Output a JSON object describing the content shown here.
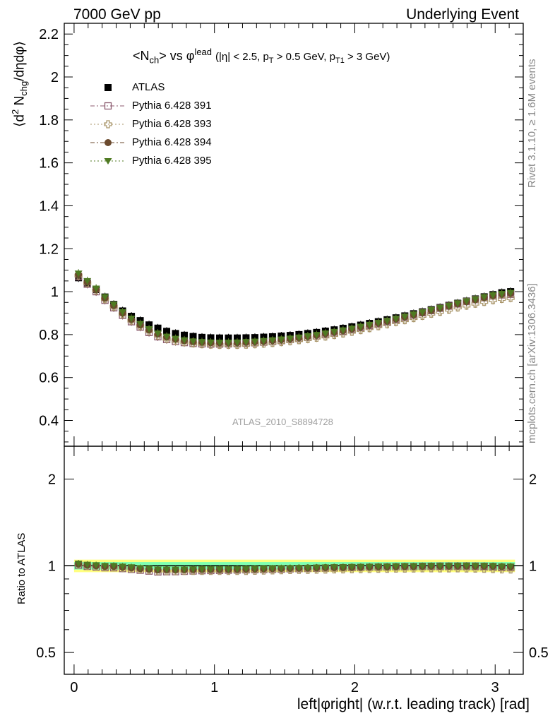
{
  "header": {
    "left": "7000 GeV pp",
    "right": "Underlying Event"
  },
  "side_labels": {
    "rivet": "Rivet 3.1.10, ≥ 1.6M events",
    "mcplots": "mcplots.cern.ch [arXiv:1306.3436]"
  },
  "watermark": "ATLAS_2010_S8894728",
  "plot_title": {
    "main": "<N",
    "main_sub": "ch",
    "main_rest": "> vs φ",
    "main_sup": "lead",
    "cuts": "(|η| < 2.5, p",
    "cuts_sub1": "T",
    "cuts_mid": " > 0.5 GeV, p",
    "cuts_sub2": "T1",
    "cuts_end": " > 3 GeV)"
  },
  "y_axis_label": {
    "pre": "⟨d",
    "sup": "2",
    "mid": " N",
    "sub": "chg",
    "post": "/dηdφ⟩"
  },
  "ratio_y_label": "Ratio to ATLAS",
  "x_axis_label": "left|φright| (w.r.t. leading track) [rad]",
  "colors": {
    "atlas": "#000000",
    "p391": "#8b5a6e",
    "p393": "#a89468",
    "p394": "#6b4a2e",
    "p395": "#4f7a22",
    "band_outer": "#ffff80",
    "band_inner": "#7fffb0"
  },
  "chart_data": [
    {
      "type": "scatter",
      "panel": "main",
      "xlim": [
        -0.07,
        3.2
      ],
      "ylim": [
        0.28,
        2.25
      ],
      "yticks": [
        0.4,
        0.6,
        0.8,
        1,
        1.2,
        1.4,
        1.6,
        1.8,
        2,
        2.2
      ],
      "xticks": [
        0,
        1,
        2,
        3
      ],
      "x": [
        0.0314,
        0.0942,
        0.1571,
        0.2199,
        0.2827,
        0.3456,
        0.4084,
        0.4712,
        0.5341,
        0.5969,
        0.6597,
        0.7226,
        0.7854,
        0.8482,
        0.9111,
        0.9739,
        1.0367,
        1.0996,
        1.1624,
        1.2252,
        1.2881,
        1.3509,
        1.4137,
        1.4765,
        1.5394,
        1.6022,
        1.665,
        1.7279,
        1.7907,
        1.8535,
        1.9164,
        1.9792,
        2.042,
        2.1049,
        2.1677,
        2.2305,
        2.2934,
        2.3562,
        2.419,
        2.4819,
        2.5447,
        2.6075,
        2.6704,
        2.7332,
        2.796,
        2.8588,
        2.9217,
        2.9845,
        3.0473,
        3.1102
      ],
      "series": [
        {
          "name": "ATLAS",
          "marker": "square-filled",
          "values": [
            1.065,
            1.04,
            1.01,
            0.975,
            0.94,
            0.91,
            0.885,
            0.865,
            0.845,
            0.83,
            0.815,
            0.805,
            0.797,
            0.791,
            0.787,
            0.785,
            0.784,
            0.784,
            0.784,
            0.785,
            0.786,
            0.788,
            0.79,
            0.793,
            0.796,
            0.8,
            0.805,
            0.81,
            0.816,
            0.822,
            0.829,
            0.836,
            0.844,
            0.852,
            0.86,
            0.869,
            0.878,
            0.887,
            0.897,
            0.906,
            0.916,
            0.926,
            0.936,
            0.946,
            0.956,
            0.966,
            0.976,
            0.986,
            0.995,
            1.0
          ]
        },
        {
          "name": "Pythia 6.428 391",
          "marker": "square-open",
          "values": [
            1.07,
            1.035,
            1.0,
            0.96,
            0.925,
            0.89,
            0.86,
            0.835,
            0.81,
            0.79,
            0.777,
            0.768,
            0.763,
            0.759,
            0.757,
            0.756,
            0.756,
            0.757,
            0.758,
            0.76,
            0.762,
            0.765,
            0.768,
            0.772,
            0.777,
            0.782,
            0.788,
            0.794,
            0.801,
            0.808,
            0.816,
            0.824,
            0.833,
            0.842,
            0.851,
            0.861,
            0.871,
            0.881,
            0.891,
            0.902,
            0.912,
            0.923,
            0.933,
            0.943,
            0.954,
            0.963,
            0.972,
            0.98,
            0.985,
            0.988
          ]
        },
        {
          "name": "Pythia 6.428 393",
          "marker": "cross-open",
          "values": [
            1.075,
            1.04,
            1.005,
            0.965,
            0.93,
            0.895,
            0.865,
            0.84,
            0.815,
            0.795,
            0.78,
            0.77,
            0.764,
            0.759,
            0.755,
            0.753,
            0.752,
            0.752,
            0.752,
            0.753,
            0.755,
            0.758,
            0.761,
            0.765,
            0.769,
            0.774,
            0.779,
            0.785,
            0.791,
            0.798,
            0.805,
            0.813,
            0.821,
            0.83,
            0.839,
            0.848,
            0.858,
            0.867,
            0.877,
            0.887,
            0.897,
            0.906,
            0.916,
            0.926,
            0.935,
            0.944,
            0.952,
            0.96,
            0.966,
            0.97
          ]
        },
        {
          "name": "Pythia 6.428 394",
          "marker": "circle-filled",
          "values": [
            1.08,
            1.045,
            1.01,
            0.97,
            0.935,
            0.9,
            0.87,
            0.845,
            0.822,
            0.803,
            0.789,
            0.779,
            0.772,
            0.767,
            0.764,
            0.762,
            0.761,
            0.761,
            0.762,
            0.764,
            0.766,
            0.769,
            0.772,
            0.776,
            0.78,
            0.785,
            0.791,
            0.797,
            0.804,
            0.811,
            0.818,
            0.826,
            0.835,
            0.844,
            0.853,
            0.862,
            0.872,
            0.882,
            0.892,
            0.902,
            0.913,
            0.923,
            0.933,
            0.944,
            0.954,
            0.963,
            0.973,
            0.982,
            0.988,
            0.992
          ]
        },
        {
          "name": "Pythia 6.428 395",
          "marker": "triangle-down-filled",
          "values": [
            1.085,
            1.05,
            1.015,
            0.975,
            0.94,
            0.905,
            0.875,
            0.85,
            0.826,
            0.806,
            0.791,
            0.781,
            0.774,
            0.769,
            0.766,
            0.764,
            0.763,
            0.763,
            0.764,
            0.766,
            0.768,
            0.771,
            0.774,
            0.778,
            0.782,
            0.787,
            0.793,
            0.799,
            0.806,
            0.813,
            0.82,
            0.828,
            0.837,
            0.846,
            0.855,
            0.864,
            0.874,
            0.884,
            0.894,
            0.904,
            0.915,
            0.925,
            0.935,
            0.946,
            0.956,
            0.965,
            0.975,
            0.984,
            0.99,
            0.995
          ]
        }
      ]
    },
    {
      "type": "scatter",
      "panel": "ratio",
      "ylabel": "Ratio to ATLAS",
      "log_y": true,
      "ylim": [
        0.42,
        2.6
      ],
      "yticks": [
        0.5,
        1,
        2
      ],
      "band": {
        "outer": [
          0.95,
          1.05
        ],
        "inner": [
          0.97,
          1.03
        ]
      },
      "reference_line": 1
    }
  ],
  "legend": [
    {
      "label": "ATLAS"
    },
    {
      "label": "Pythia 6.428 391"
    },
    {
      "label": "Pythia 6.428 393"
    },
    {
      "label": "Pythia 6.428 394"
    },
    {
      "label": "Pythia 6.428 395"
    }
  ]
}
